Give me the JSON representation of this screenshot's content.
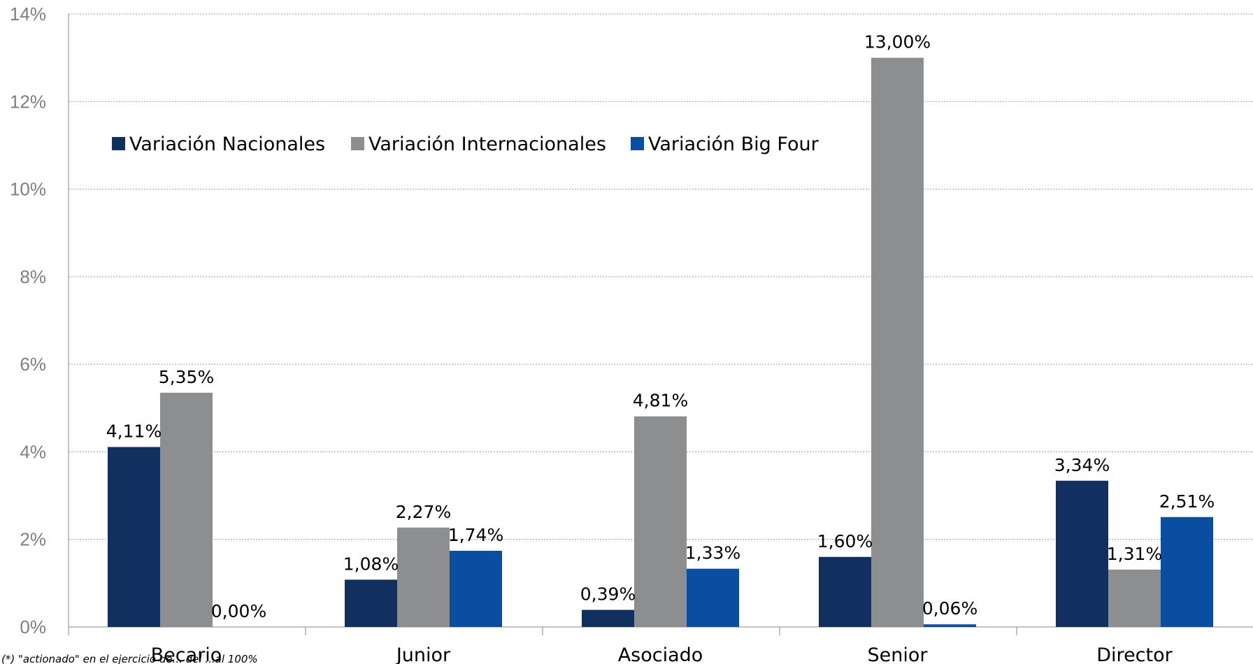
{
  "chart_data": {
    "type": "bar",
    "categories": [
      "Becario",
      "Junior",
      "Asociado",
      "Senior",
      "Director"
    ],
    "series": [
      {
        "name": "Variación Nacionales",
        "values": [
          4.11,
          1.08,
          0.39,
          1.6,
          3.34
        ],
        "labels": [
          "4,11%",
          "1,08%",
          "0,39%",
          "1,60%",
          "3,34%"
        ],
        "color": "#12305f"
      },
      {
        "name": "Variación Internacionales",
        "values": [
          5.35,
          2.27,
          4.81,
          13.0,
          1.31
        ],
        "labels": [
          "5,35%",
          "2,27%",
          "4,81%",
          "13,00%",
          "1,31%"
        ],
        "color": "#8c8e90"
      },
      {
        "name": "Variación Big Four",
        "values": [
          0.0,
          1.74,
          1.33,
          0.06,
          2.51
        ],
        "labels": [
          "0,00%",
          "1,74%",
          "1,33%",
          "0,06%",
          "2,51%"
        ],
        "color": "#0a4ea2"
      }
    ],
    "yticks": [
      0,
      2,
      4,
      6,
      8,
      10,
      12,
      14
    ],
    "ytick_labels": [
      "0%",
      "2%",
      "4%",
      "6%",
      "8%",
      "10%",
      "12%",
      "14%"
    ],
    "ylim": [
      0,
      14
    ],
    "grid": true,
    "legend_position": "top-left",
    "title": "",
    "xlabel": "",
    "ylabel": ""
  },
  "footnote": "(*) \"actionado\" en el ejercicio de... del ...al 100%"
}
